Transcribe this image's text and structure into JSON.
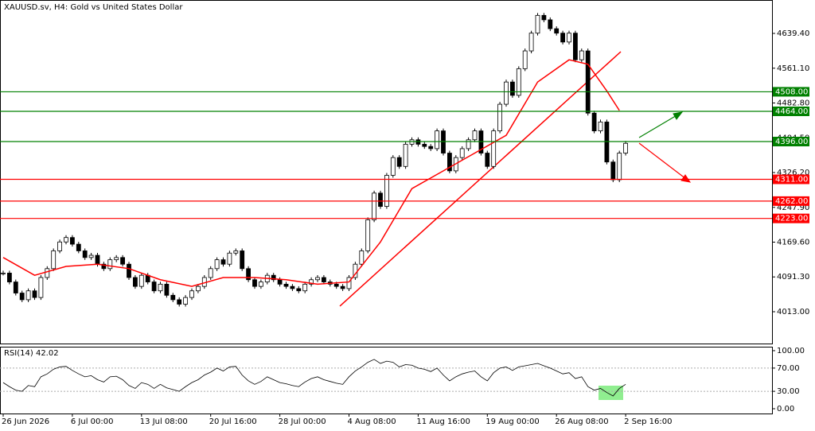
{
  "chart_data": {
    "type": "candlestick",
    "title": "XAUUSD.sv, H4:  Gold vs United States Dollar",
    "categories": [
      "26 Jun 2026",
      null,
      null,
      null,
      null,
      null,
      null,
      null,
      null,
      null,
      null,
      "6 Jul 00:00",
      null,
      null,
      null,
      null,
      null,
      null,
      null,
      null,
      null,
      null,
      "13 Jul 08:00",
      null,
      null,
      null,
      null,
      null,
      null,
      null,
      null,
      null,
      null,
      "20 Jul 16:00",
      null,
      null,
      null,
      null,
      null,
      null,
      null,
      null,
      null,
      null,
      "28 Jul 00:00",
      null,
      null,
      null,
      null,
      null,
      null,
      null,
      null,
      null,
      null,
      "4 Aug 08:00",
      null,
      null,
      null,
      null,
      null,
      null,
      null,
      null,
      null,
      null,
      "11 Aug 16:00",
      null,
      null,
      null,
      null,
      null,
      null,
      null,
      null,
      null,
      null,
      "19 Aug 00:00",
      null,
      null,
      null,
      null,
      null,
      null,
      null,
      null,
      null,
      null,
      "26 Aug 08:00",
      null,
      null,
      null,
      null,
      null,
      null,
      null,
      null,
      null,
      null,
      "2 Sep 16:00"
    ],
    "close": [
      4100,
      4080,
      4055,
      4040,
      4060,
      4045,
      4090,
      4110,
      4150,
      4170,
      4180,
      4165,
      4150,
      4135,
      4140,
      4120,
      4110,
      4130,
      4135,
      4120,
      4090,
      4070,
      4095,
      4080,
      4060,
      4075,
      4050,
      4040,
      4030,
      4045,
      4060,
      4070,
      4090,
      4110,
      4130,
      4120,
      4145,
      4150,
      4110,
      4085,
      4070,
      4080,
      4095,
      4085,
      4075,
      4070,
      4065,
      4060,
      4075,
      4085,
      4090,
      4080,
      4075,
      4070,
      4065,
      4090,
      4120,
      4150,
      4220,
      4280,
      4250,
      4320,
      4360,
      4340,
      4390,
      4400,
      4390,
      4385,
      4380,
      4420,
      4370,
      4330,
      4360,
      4380,
      4400,
      4420,
      4370,
      4340,
      4420,
      4480,
      4530,
      4500,
      4560,
      4600,
      4640,
      4680,
      4670,
      4650,
      4640,
      4620,
      4640,
      4580,
      4600,
      4460,
      4420,
      4440,
      4350,
      4310,
      4370,
      4392
    ],
    "ma": {
      "color": "#ff0000",
      "x": [
        0,
        5,
        10,
        15,
        20,
        25,
        30,
        35,
        40,
        45,
        50,
        55,
        60,
        65,
        70,
        75,
        80,
        85,
        90,
        93,
        96,
        98
      ],
      "values": [
        4135,
        4095,
        4115,
        4120,
        4110,
        4085,
        4070,
        4090,
        4090,
        4085,
        4075,
        4080,
        4170,
        4290,
        4330,
        4370,
        4410,
        4530,
        4580,
        4570,
        4510,
        4466
      ]
    },
    "ylim": [
      3941.4,
      4714.6
    ],
    "yticks": [
      {
        "value": 4013,
        "label": "4013.00"
      },
      {
        "value": 4091.3,
        "label": "4091.30"
      },
      {
        "value": 4169.6,
        "label": "4169.60"
      },
      {
        "value": 4247.9,
        "label": "4247.90"
      },
      {
        "value": 4326.2,
        "label": "4326.20"
      },
      {
        "value": 4404.5,
        "label": "4404.50"
      },
      {
        "value": 4482.8,
        "label": "4482.80"
      },
      {
        "value": 4561.1,
        "label": "4561.10"
      },
      {
        "value": 4639.4,
        "label": "4639.40"
      }
    ],
    "levels": [
      {
        "value": 4508,
        "label": "4508.00",
        "color": "#008000"
      },
      {
        "value": 4464,
        "label": "4464.00",
        "color": "#008000"
      },
      {
        "value": 4396,
        "label": "4396.00",
        "color": "#008000"
      },
      {
        "value": 4311,
        "label": "4311.00",
        "color": "#ff0000"
      },
      {
        "value": 4262,
        "label": "4262.00",
        "color": "#ff0000"
      },
      {
        "value": 4223,
        "label": "4223.00",
        "color": "#ff0000"
      }
    ],
    "rsi": {
      "title": "RSI(14) 42.02",
      "ylim": [
        -8.2,
        106.8
      ],
      "yticks": [
        {
          "value": 100,
          "label": "100.00"
        },
        {
          "value": 70,
          "label": "70.00"
        },
        {
          "value": 30,
          "label": "30.00"
        },
        {
          "value": 0,
          "label": "0.00"
        }
      ],
      "values": [
        45,
        38,
        32,
        30,
        40,
        38,
        55,
        60,
        68,
        72,
        73,
        66,
        60,
        55,
        57,
        50,
        46,
        55,
        56,
        50,
        40,
        35,
        45,
        42,
        35,
        42,
        36,
        33,
        30,
        38,
        45,
        50,
        58,
        63,
        70,
        65,
        72,
        73,
        58,
        48,
        42,
        47,
        55,
        50,
        45,
        43,
        40,
        38,
        46,
        52,
        55,
        50,
        47,
        44,
        42,
        55,
        65,
        72,
        80,
        85,
        78,
        82,
        80,
        72,
        76,
        75,
        70,
        68,
        64,
        70,
        58,
        48,
        55,
        60,
        63,
        65,
        55,
        48,
        62,
        70,
        72,
        66,
        72,
        74,
        76,
        78,
        74,
        70,
        65,
        60,
        62,
        52,
        55,
        38,
        32,
        35,
        28,
        22,
        35,
        42
      ]
    }
  }
}
